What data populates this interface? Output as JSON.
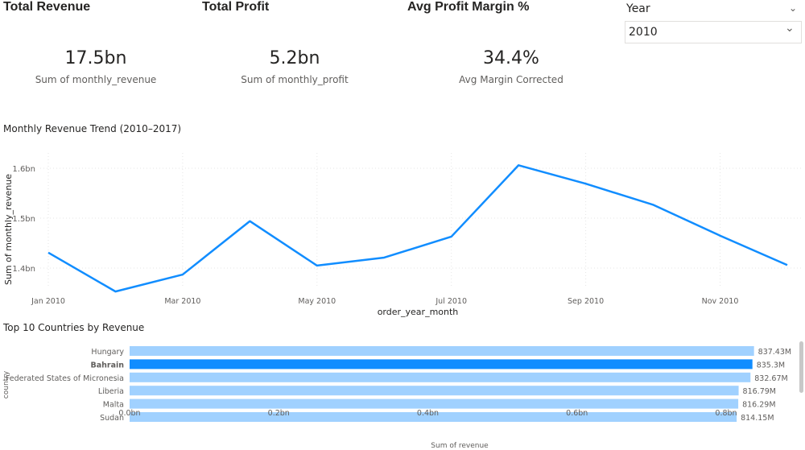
{
  "kpis": [
    {
      "title": "Total Revenue",
      "value": "17.5bn",
      "subtitle": "Sum of monthly_revenue"
    },
    {
      "title": "Total Profit",
      "value": "5.2bn",
      "subtitle": "Sum of monthly_profit"
    },
    {
      "title": "Avg Profit Margin %",
      "value": "34.4%",
      "subtitle": "Avg Margin Corrected"
    }
  ],
  "slicer": {
    "label": "Year",
    "selected": "2010"
  },
  "chart_data": [
    {
      "type": "line",
      "title": "Monthly Revenue Trend (2010–2017)",
      "xlabel": "order_year_month",
      "ylabel": "Sum of monthly_revenue",
      "x": [
        "Jan 2010",
        "Feb 2010",
        "Mar 2010",
        "Apr 2010",
        "May 2010",
        "Jun 2010",
        "Jul 2010",
        "Aug 2010",
        "Sep 2010",
        "Oct 2010",
        "Nov 2010",
        "Dec 2010"
      ],
      "xticks": [
        "Jan 2010",
        "Mar 2010",
        "May 2010",
        "Jul 2010",
        "Sep 2010",
        "Nov 2010"
      ],
      "values": [
        1.431,
        1.353,
        1.387,
        1.494,
        1.405,
        1.421,
        1.463,
        1.606,
        1.569,
        1.527,
        1.465,
        1.406
      ],
      "yticks": [
        {
          "v": 1.4,
          "label": "1.4bn"
        },
        {
          "v": 1.5,
          "label": "1.5bn"
        },
        {
          "v": 1.6,
          "label": "1.6bn"
        }
      ],
      "ylim": [
        1.33,
        1.66
      ],
      "grid": true,
      "color": "#118dff"
    },
    {
      "type": "bar",
      "orientation": "horizontal",
      "title": "Top 10 Countries by Revenue",
      "xlabel": "Sum of revenue",
      "ylabel": "country",
      "categories": [
        "Hungary",
        "Bahrain",
        "Federated States of Micronesia",
        "Liberia",
        "Malta",
        "Sudan"
      ],
      "values": [
        837.43,
        835.3,
        832.67,
        816.79,
        816.29,
        814.15
      ],
      "data_labels": [
        "837.43M",
        "835.3M",
        "832.67M",
        "816.79M",
        "816.29M",
        "814.15M"
      ],
      "highlighted": "Bahrain",
      "xticks": [
        {
          "v": 0,
          "label": "0.0bn"
        },
        {
          "v": 200,
          "label": "0.2bn"
        },
        {
          "v": 400,
          "label": "0.4bn"
        },
        {
          "v": 600,
          "label": "0.6bn"
        },
        {
          "v": 800,
          "label": "0.8bn"
        }
      ],
      "xlim": [
        0,
        800
      ],
      "color": "#a0d1ff",
      "highlight_color": "#118dff"
    }
  ]
}
